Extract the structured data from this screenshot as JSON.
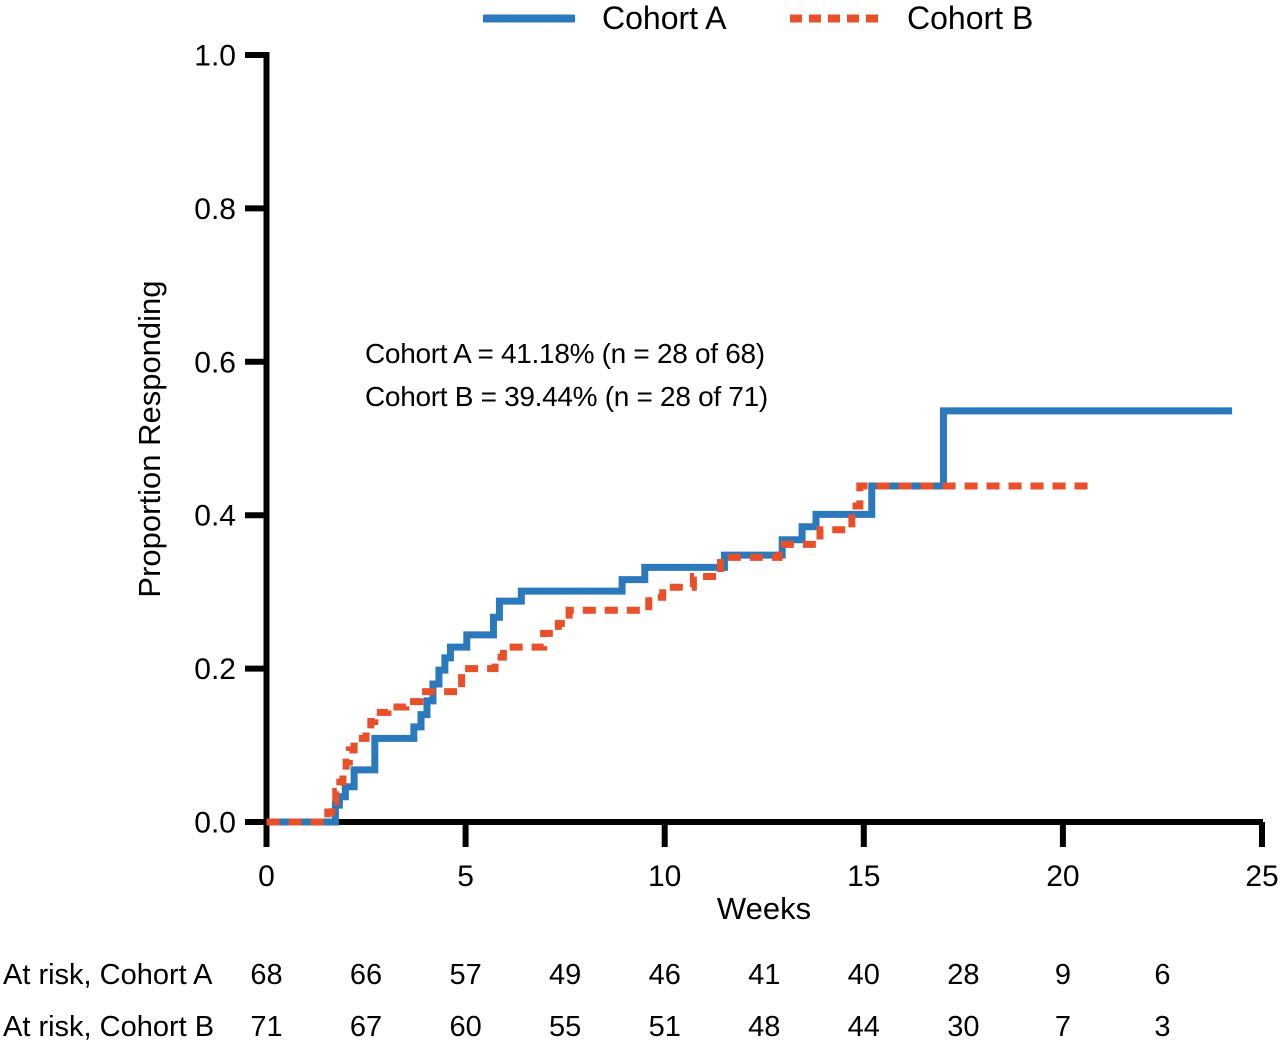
{
  "colors": {
    "cohort_a": "#2A79BC",
    "cohort_b": "#E94F28",
    "axis": "#000000",
    "background": "#FFFFFF"
  },
  "legend": {
    "items": [
      {
        "label": "Cohort A",
        "style": "solid",
        "icon": "legend-line-solid-icon"
      },
      {
        "label": "Cohort B",
        "style": "dashed",
        "icon": "legend-line-dashed-icon"
      }
    ]
  },
  "annotation": {
    "lines": [
      "Cohort A = 41.18% (n = 28 of 68)",
      "Cohort B = 39.44% (n = 28 of 71)"
    ]
  },
  "axes": {
    "x": {
      "label": "Weeks",
      "tick_values": [
        0,
        5,
        10,
        15,
        20,
        25
      ],
      "tick_labels": [
        "0",
        "5",
        "10",
        "15",
        "20",
        "25"
      ]
    },
    "y": {
      "label": "Proportion Responding",
      "tick_values": [
        0,
        0.2,
        0.4,
        0.6,
        0.8,
        1.0
      ],
      "tick_labels": [
        "0.0",
        "0.2",
        "0.4",
        "0.6",
        "0.8",
        "1.0"
      ]
    }
  },
  "chart_data": {
    "type": "line",
    "subtype": "kaplan_meier_step",
    "title": "",
    "xlabel": "Weeks",
    "ylabel": "Proportion Responding",
    "xlim": [
      0,
      25
    ],
    "ylim": [
      0,
      1.0
    ],
    "grid": false,
    "legend_position": "top-center",
    "annotations": [
      "Cohort A = 41.18% (n = 28 of 68)",
      "Cohort B = 39.44% (n = 28 of 71)"
    ],
    "series": [
      {
        "name": "Cohort A",
        "color": "#2A79BC",
        "line_style": "solid",
        "steps": [
          [
            0,
            0
          ],
          [
            1.73,
            0.022
          ],
          [
            1.83,
            0.033
          ],
          [
            1.98,
            0.046
          ],
          [
            2.2,
            0.068
          ],
          [
            2.72,
            0.109
          ],
          [
            3.7,
            0.124
          ],
          [
            3.88,
            0.14
          ],
          [
            4.03,
            0.158
          ],
          [
            4.18,
            0.18
          ],
          [
            4.33,
            0.198
          ],
          [
            4.48,
            0.214
          ],
          [
            4.62,
            0.228
          ],
          [
            5.03,
            0.244
          ],
          [
            5.7,
            0.267
          ],
          [
            5.85,
            0.288
          ],
          [
            6.4,
            0.301
          ],
          [
            8.93,
            0.316
          ],
          [
            9.5,
            0.332
          ],
          [
            11.5,
            0.348
          ],
          [
            12.95,
            0.368
          ],
          [
            13.45,
            0.385
          ],
          [
            13.8,
            0.401
          ],
          [
            15.2,
            0.438
          ],
          [
            17.0,
            0.536
          ]
        ],
        "end_week": 24.25
      },
      {
        "name": "Cohort B",
        "color": "#E94F28",
        "line_style": "dashed",
        "steps": [
          [
            0,
            0
          ],
          [
            1.54,
            0.013
          ],
          [
            1.64,
            0.026
          ],
          [
            1.74,
            0.04
          ],
          [
            1.84,
            0.052
          ],
          [
            1.92,
            0.065
          ],
          [
            2.0,
            0.078
          ],
          [
            2.08,
            0.094
          ],
          [
            2.2,
            0.109
          ],
          [
            2.5,
            0.122
          ],
          [
            2.62,
            0.131
          ],
          [
            2.72,
            0.143
          ],
          [
            3.05,
            0.15
          ],
          [
            3.5,
            0.157
          ],
          [
            3.85,
            0.17
          ],
          [
            4.9,
            0.2
          ],
          [
            5.74,
            0.215
          ],
          [
            5.95,
            0.228
          ],
          [
            6.96,
            0.246
          ],
          [
            7.33,
            0.259
          ],
          [
            7.6,
            0.276
          ],
          [
            9.6,
            0.293
          ],
          [
            9.95,
            0.306
          ],
          [
            10.72,
            0.32
          ],
          [
            11.4,
            0.345
          ],
          [
            12.87,
            0.362
          ],
          [
            13.9,
            0.381
          ],
          [
            14.7,
            0.412
          ],
          [
            14.9,
            0.438
          ]
        ],
        "end_week": 20.65
      }
    ],
    "at_risk_table": {
      "time_points": [
        0,
        2.5,
        5,
        7.5,
        10,
        12.5,
        15,
        17.5,
        20,
        22.5
      ],
      "rows": [
        {
          "label": "At risk, Cohort A",
          "counts": [
            68,
            66,
            57,
            49,
            46,
            41,
            40,
            28,
            9,
            6
          ]
        },
        {
          "label": "At risk, Cohort B",
          "counts": [
            71,
            67,
            60,
            55,
            51,
            48,
            44,
            30,
            7,
            3
          ]
        }
      ]
    }
  }
}
